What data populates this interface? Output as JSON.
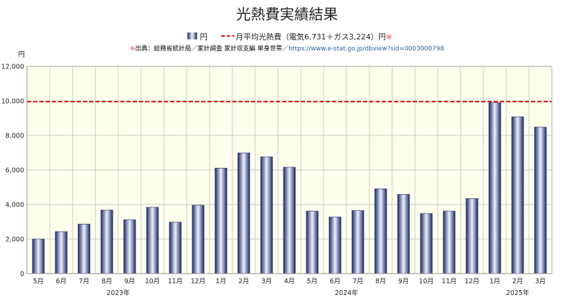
{
  "title": "光熱費実績結果",
  "legend": {
    "series_label": "円",
    "avg_label": "月平均光熱費（電気6,731＋ガス3,224）円",
    "avg_mark": "※"
  },
  "source": {
    "mark": "※",
    "text": "出典：総務省統計局／家計調査 家計収支編 単身世帯／",
    "url": "https://www.e-stat.go.jp/dbview?sid=0003000798"
  },
  "colors": {
    "plot_bg": "#ffffee",
    "bar_dark": "#1c2a66",
    "bar_light": "#eef0fb",
    "avg_line": "#dd1111",
    "mark": "#ff3333",
    "link": "#2a5d8f",
    "grid": "#c8c8c8"
  },
  "chart_data": {
    "type": "bar",
    "title": "光熱費実績結果",
    "ylabel": "円",
    "xlabel": "",
    "ylim": [
      0,
      12000
    ],
    "yticks": [
      0,
      2000,
      4000,
      6000,
      8000,
      10000,
      12000
    ],
    "ytick_labels": [
      "0",
      "2,000",
      "4,000",
      "6,000",
      "8,000",
      "10,000",
      "12,000"
    ],
    "grid": true,
    "legend_position": "top-center",
    "categories": [
      "5月",
      "6月",
      "7月",
      "8月",
      "9月",
      "10月",
      "11月",
      "12月",
      "1月",
      "2月",
      "3月",
      "4月",
      "5月",
      "6月",
      "7月",
      "8月",
      "9月",
      "10月",
      "11月",
      "12月",
      "1月",
      "2月",
      "3月"
    ],
    "year_groups": [
      {
        "label": "2023年",
        "from": 0,
        "to": 7
      },
      {
        "label": "2024年",
        "from": 8,
        "to": 19
      },
      {
        "label": "2025年",
        "from": 20,
        "to": 22
      }
    ],
    "series": [
      {
        "name": "円",
        "values": [
          2000,
          2430,
          2870,
          3680,
          3120,
          3840,
          2980,
          3960,
          6110,
          6990,
          6760,
          6160,
          3620,
          3280,
          3650,
          4910,
          4590,
          3480,
          3620,
          4350,
          9900,
          9080,
          8480
        ]
      }
    ],
    "reference_line": {
      "name": "月平均光熱費（電気6,731＋ガス3,224）円",
      "value": 9955
    }
  }
}
